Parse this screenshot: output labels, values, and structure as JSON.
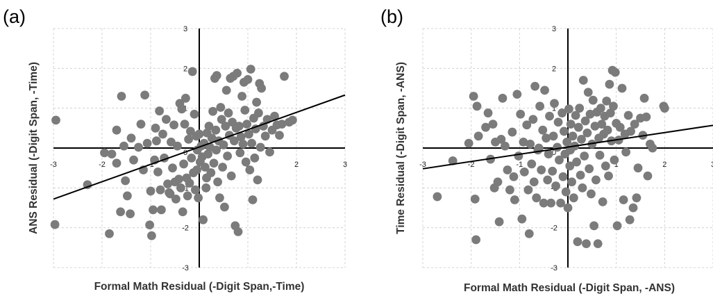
{
  "chart_data": [
    {
      "type": "scatter",
      "panel_label": "(a)",
      "xlabel": "Formal Math Residual (-Digit Span,-Time)",
      "ylabel": "ANS Residual (-Digit Span, -Time)",
      "xlim": [
        -3,
        3
      ],
      "ylim": [
        -3,
        3
      ],
      "x_ticks": [
        "-3",
        "-2",
        "-1",
        "0",
        "1",
        "2",
        "3"
      ],
      "y_ticks": [
        "-3",
        "-2",
        "-1",
        "0",
        "1",
        "2",
        "3"
      ],
      "grid": true,
      "point_color": "#7b7b7b",
      "fit_line": {
        "x": [
          -3,
          3
        ],
        "y": [
          -1.28,
          1.33
        ]
      },
      "points": [
        [
          -2.95,
          0.7
        ],
        [
          -2.97,
          -1.92
        ],
        [
          -2.3,
          -0.92
        ],
        [
          -1.95,
          -0.12
        ],
        [
          -1.85,
          -2.15
        ],
        [
          -1.8,
          -0.15
        ],
        [
          -1.7,
          -0.38
        ],
        [
          -1.7,
          0.45
        ],
        [
          -1.62,
          -1.6
        ],
        [
          -1.6,
          1.3
        ],
        [
          -1.55,
          0.05
        ],
        [
          -1.52,
          -0.82
        ],
        [
          -1.48,
          -1.2
        ],
        [
          -1.42,
          -1.65
        ],
        [
          -1.4,
          0.25
        ],
        [
          -1.35,
          -0.3
        ],
        [
          -1.25,
          0.02
        ],
        [
          -1.2,
          0.6
        ],
        [
          -1.15,
          -0.55
        ],
        [
          -1.12,
          1.33
        ],
        [
          -1.07,
          0.12
        ],
        [
          -1.02,
          -1.93
        ],
        [
          -1.0,
          -1.08
        ],
        [
          -0.98,
          -2.2
        ],
        [
          -0.95,
          -1.55
        ],
        [
          -0.92,
          -0.3
        ],
        [
          -0.9,
          0.5
        ],
        [
          -0.88,
          0.18
        ],
        [
          -0.85,
          -0.6
        ],
        [
          -0.82,
          0.93
        ],
        [
          -0.8,
          -1.05
        ],
        [
          -0.78,
          -1.55
        ],
        [
          -0.75,
          0.35
        ],
        [
          -0.72,
          -0.25
        ],
        [
          -0.68,
          0.72
        ],
        [
          -0.65,
          -0.9
        ],
        [
          -0.62,
          -1.12
        ],
        [
          -0.6,
          -1.15
        ],
        [
          -0.58,
          0.15
        ],
        [
          -0.55,
          -0.5
        ],
        [
          -0.52,
          0.58
        ],
        [
          -0.5,
          -0.85
        ],
        [
          -0.48,
          -1.28
        ],
        [
          -0.45,
          0.05
        ],
        [
          -0.42,
          -0.78
        ],
        [
          -0.4,
          1.12
        ],
        [
          -0.38,
          -1.0
        ],
        [
          -0.36,
          0.98
        ],
        [
          -0.34,
          -1.6
        ],
        [
          -0.32,
          -0.4
        ],
        [
          -0.3,
          0.6
        ],
        [
          -0.28,
          1.25
        ],
        [
          -0.26,
          -0.75
        ],
        [
          -0.24,
          -1.2
        ],
        [
          -0.22,
          0.22
        ],
        [
          -0.2,
          -0.88
        ],
        [
          -0.18,
          0.42
        ],
        [
          -0.16,
          -0.25
        ],
        [
          -0.14,
          1.92
        ],
        [
          -0.12,
          -0.62
        ],
        [
          -0.1,
          0.85
        ],
        [
          -0.08,
          -1.05
        ],
        [
          -0.06,
          0.3
        ],
        [
          -0.04,
          -0.05
        ],
        [
          -0.02,
          -1.25
        ],
        [
          0.0,
          0.35
        ],
        [
          0.02,
          -0.35
        ],
        [
          0.04,
          0.05
        ],
        [
          0.06,
          -0.22
        ],
        [
          0.08,
          -1.8
        ],
        [
          0.1,
          0.12
        ],
        [
          0.12,
          -0.48
        ],
        [
          0.14,
          -1.0
        ],
        [
          0.16,
          0.38
        ],
        [
          0.18,
          -0.15
        ],
        [
          0.2,
          0.55
        ],
        [
          0.22,
          0.02
        ],
        [
          0.24,
          -0.62
        ],
        [
          0.26,
          0.25
        ],
        [
          0.28,
          0.92
        ],
        [
          0.3,
          -0.38
        ],
        [
          0.32,
          1.75
        ],
        [
          0.34,
          0.45
        ],
        [
          0.36,
          1.82
        ],
        [
          0.38,
          -0.85
        ],
        [
          0.4,
          0.18
        ],
        [
          0.42,
          -1.25
        ],
        [
          0.44,
          1.02
        ],
        [
          0.46,
          0.72
        ],
        [
          0.48,
          -0.48
        ],
        [
          0.5,
          0.08
        ],
        [
          0.52,
          -1.48
        ],
        [
          0.54,
          0.55
        ],
        [
          0.56,
          1.45
        ],
        [
          0.58,
          -0.2
        ],
        [
          0.6,
          0.88
        ],
        [
          0.62,
          0.32
        ],
        [
          0.64,
          1.75
        ],
        [
          0.66,
          -0.7
        ],
        [
          0.68,
          0.65
        ],
        [
          0.7,
          1.8
        ],
        [
          0.72,
          0.18
        ],
        [
          0.74,
          -1.95
        ],
        [
          0.76,
          0.5
        ],
        [
          0.78,
          1.88
        ],
        [
          0.8,
          -2.1
        ],
        [
          0.82,
          0.55
        ],
        [
          0.84,
          -0.12
        ],
        [
          0.86,
          0.28
        ],
        [
          0.88,
          1.3
        ],
        [
          0.9,
          0.1
        ],
        [
          0.92,
          1.65
        ],
        [
          0.94,
          0.95
        ],
        [
          0.96,
          -0.35
        ],
        [
          0.98,
          0.6
        ],
        [
          1.0,
          1.72
        ],
        [
          1.02,
          0.35
        ],
        [
          1.04,
          -0.55
        ],
        [
          1.06,
          1.98
        ],
        [
          1.08,
          0.12
        ],
        [
          1.1,
          -1.3
        ],
        [
          1.12,
          0.75
        ],
        [
          1.14,
          -0.25
        ],
        [
          1.16,
          0.48
        ],
        [
          1.18,
          1.15
        ],
        [
          1.2,
          -0.8
        ],
        [
          1.22,
          0.88
        ],
        [
          1.24,
          1.62
        ],
        [
          1.26,
          0.02
        ],
        [
          1.28,
          1.5
        ],
        [
          1.32,
          0.55
        ],
        [
          1.36,
          0.3
        ],
        [
          1.4,
          0.72
        ],
        [
          1.45,
          -0.1
        ],
        [
          1.5,
          0.45
        ],
        [
          1.55,
          0.8
        ],
        [
          1.6,
          0.58
        ],
        [
          1.65,
          0.32
        ],
        [
          1.7,
          0.6
        ],
        [
          1.75,
          1.8
        ],
        [
          1.85,
          0.65
        ],
        [
          1.92,
          0.7
        ],
        [
          0.35,
          -0.05
        ],
        [
          -0.05,
          -0.55
        ],
        [
          0.15,
          -0.75
        ]
      ]
    },
    {
      "type": "scatter",
      "panel_label": "(b)",
      "xlabel": "Formal Math Residual (-Digit Span, -ANS)",
      "ylabel": "Time Residual (-Digit Span, -ANS)",
      "xlim": [
        -3,
        3
      ],
      "ylim": [
        -3,
        3
      ],
      "x_ticks": [
        "-3",
        "-2",
        "-1",
        "0",
        "1",
        "2",
        "3"
      ],
      "y_ticks": [
        "-3",
        "-2",
        "-1",
        "0",
        "1",
        "2",
        "3"
      ],
      "grid": true,
      "point_color": "#7b7b7b",
      "fit_line": {
        "x": [
          -3,
          3
        ],
        "y": [
          -0.52,
          0.57
        ]
      },
      "points": [
        [
          -2.7,
          -1.22
        ],
        [
          -2.38,
          -0.32
        ],
        [
          -2.05,
          0.12
        ],
        [
          -1.95,
          1.3
        ],
        [
          -1.92,
          -1.28
        ],
        [
          -1.9,
          -2.3
        ],
        [
          -1.88,
          1.05
        ],
        [
          -1.85,
          0.3
        ],
        [
          -1.7,
          0.52
        ],
        [
          -1.65,
          0.88
        ],
        [
          -1.6,
          -0.28
        ],
        [
          -1.55,
          0.6
        ],
        [
          -1.52,
          -1.0
        ],
        [
          -1.5,
          0.15
        ],
        [
          -1.45,
          -0.85
        ],
        [
          -1.42,
          -1.85
        ],
        [
          -1.38,
          0.22
        ],
        [
          -1.35,
          1.25
        ],
        [
          -1.3,
          0.05
        ],
        [
          -1.25,
          -0.55
        ],
        [
          -1.2,
          -1.05
        ],
        [
          -1.15,
          0.4
        ],
        [
          -1.12,
          -0.72
        ],
        [
          -1.1,
          -1.3
        ],
        [
          -1.05,
          1.35
        ],
        [
          -1.02,
          -0.2
        ],
        [
          -0.98,
          0.85
        ],
        [
          -0.95,
          -1.78
        ],
        [
          -0.92,
          0.15
        ],
        [
          -0.9,
          -0.6
        ],
        [
          -0.85,
          0.58
        ],
        [
          -0.82,
          -1.05
        ],
        [
          -0.8,
          -2.15
        ],
        [
          -0.78,
          0.1
        ],
        [
          -0.75,
          -0.4
        ],
        [
          -0.72,
          0.72
        ],
        [
          -0.7,
          -0.85
        ],
        [
          -0.68,
          1.55
        ],
        [
          -0.65,
          -1.25
        ],
        [
          -0.6,
          0.0
        ],
        [
          -0.58,
          1.05
        ],
        [
          -0.55,
          -0.55
        ],
        [
          -0.52,
          0.45
        ],
        [
          -0.5,
          -1.38
        ],
        [
          -0.48,
          1.45
        ],
        [
          -0.45,
          0.25
        ],
        [
          -0.42,
          -0.8
        ],
        [
          -0.4,
          -0.15
        ],
        [
          -0.38,
          0.8
        ],
        [
          -0.35,
          -1.38
        ],
        [
          -0.32,
          -0.58
        ],
        [
          -0.3,
          0.3
        ],
        [
          -0.28,
          1.12
        ],
        [
          -0.25,
          -0.95
        ],
        [
          -0.22,
          0.02
        ],
        [
          -0.2,
          0.65
        ],
        [
          -0.18,
          -0.3
        ],
        [
          -0.15,
          -1.38
        ],
        [
          -0.12,
          0.88
        ],
        [
          -0.1,
          -0.72
        ],
        [
          -0.08,
          0.42
        ],
        [
          -0.06,
          -0.15
        ],
        [
          -0.04,
          -1.1
        ],
        [
          -0.02,
          0.15
        ],
        [
          0.0,
          -1.5
        ],
        [
          0.02,
          0.98
        ],
        [
          0.04,
          -0.45
        ],
        [
          0.06,
          0.6
        ],
        [
          0.08,
          -0.85
        ],
        [
          0.1,
          0.3
        ],
        [
          0.12,
          -1.25
        ],
        [
          0.14,
          0.05
        ],
        [
          0.16,
          0.82
        ],
        [
          0.18,
          -0.35
        ],
        [
          0.2,
          -2.35
        ],
        [
          0.22,
          0.52
        ],
        [
          0.24,
          1.0
        ],
        [
          0.26,
          -0.68
        ],
        [
          0.28,
          0.22
        ],
        [
          0.3,
          -1.0
        ],
        [
          0.32,
          1.7
        ],
        [
          0.34,
          -0.2
        ],
        [
          0.36,
          0.68
        ],
        [
          0.38,
          -2.4
        ],
        [
          0.4,
          0.38
        ],
        [
          0.42,
          1.4
        ],
        [
          0.44,
          -0.52
        ],
        [
          0.46,
          0.85
        ],
        [
          0.48,
          -1.15
        ],
        [
          0.5,
          0.1
        ],
        [
          0.52,
          1.2
        ],
        [
          0.54,
          -1.95
        ],
        [
          0.56,
          0.55
        ],
        [
          0.58,
          -0.8
        ],
        [
          0.6,
          0.9
        ],
        [
          0.62,
          -2.4
        ],
        [
          0.64,
          0.25
        ],
        [
          0.66,
          -0.18
        ],
        [
          0.68,
          1.0
        ],
        [
          0.7,
          0.6
        ],
        [
          0.72,
          -1.35
        ],
        [
          0.74,
          0.35
        ],
        [
          0.76,
          0.8
        ],
        [
          0.78,
          -0.45
        ],
        [
          0.8,
          1.18
        ],
        [
          0.82,
          0.45
        ],
        [
          0.84,
          -0.7
        ],
        [
          0.86,
          1.6
        ],
        [
          0.88,
          0.88
        ],
        [
          0.9,
          0.18
        ],
        [
          0.92,
          1.95
        ],
        [
          0.94,
          1.05
        ],
        [
          0.96,
          -0.3
        ],
        [
          0.98,
          1.9
        ],
        [
          1.0,
          0.62
        ],
        [
          1.02,
          -1.95
        ],
        [
          1.05,
          0.2
        ],
        [
          1.08,
          0.52
        ],
        [
          1.12,
          1.5
        ],
        [
          1.15,
          -1.3
        ],
        [
          1.18,
          0.35
        ],
        [
          1.2,
          -0.1
        ],
        [
          1.25,
          0.82
        ],
        [
          1.28,
          -1.8
        ],
        [
          1.3,
          0.42
        ],
        [
          1.35,
          -1.5
        ],
        [
          1.38,
          0.6
        ],
        [
          1.42,
          -1.25
        ],
        [
          1.45,
          -0.5
        ],
        [
          1.5,
          0.75
        ],
        [
          1.55,
          0.32
        ],
        [
          1.58,
          1.25
        ],
        [
          1.62,
          0.78
        ],
        [
          1.65,
          -0.7
        ],
        [
          1.7,
          0.1
        ],
        [
          1.75,
          0.0
        ],
        [
          1.98,
          1.05
        ],
        [
          2.0,
          1.0
        ],
        [
          0.05,
          -0.05
        ],
        [
          -0.62,
          -0.05
        ]
      ]
    }
  ]
}
